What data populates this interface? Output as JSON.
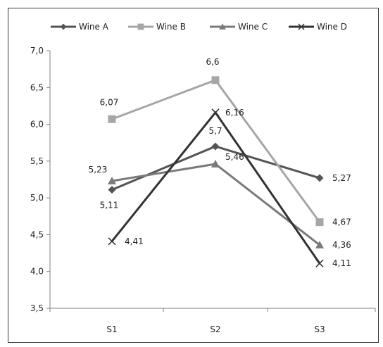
{
  "chart_data": {
    "type": "line",
    "categories": [
      "S1",
      "S2",
      "S3"
    ],
    "ylim": [
      3.5,
      7.0
    ],
    "yticks": [
      "3,5",
      "4,0",
      "4,5",
      "5,0",
      "5,5",
      "6,0",
      "6,5",
      "7,0"
    ],
    "grid": false,
    "legend_position": "top",
    "series": [
      {
        "name": "Wine A",
        "values": [
          5.11,
          5.7,
          5.27
        ],
        "labels": [
          "5,11",
          "5,7",
          "5,27"
        ],
        "color": "#545454",
        "marker": "diamond"
      },
      {
        "name": "Wine B",
        "values": [
          6.07,
          6.6,
          4.67
        ],
        "labels": [
          "6,07",
          "6,6",
          "4,67"
        ],
        "color": "#a6a6a6",
        "marker": "square"
      },
      {
        "name": "Wine C",
        "values": [
          5.23,
          5.46,
          4.36
        ],
        "labels": [
          "5,23",
          "5,46",
          "4,36"
        ],
        "color": "#7a7a7a",
        "marker": "triangle"
      },
      {
        "name": "Wine D",
        "values": [
          4.41,
          6.16,
          4.11
        ],
        "labels": [
          "4,41",
          "6,16",
          "4,11"
        ],
        "color": "#333333",
        "marker": "x"
      }
    ]
  }
}
